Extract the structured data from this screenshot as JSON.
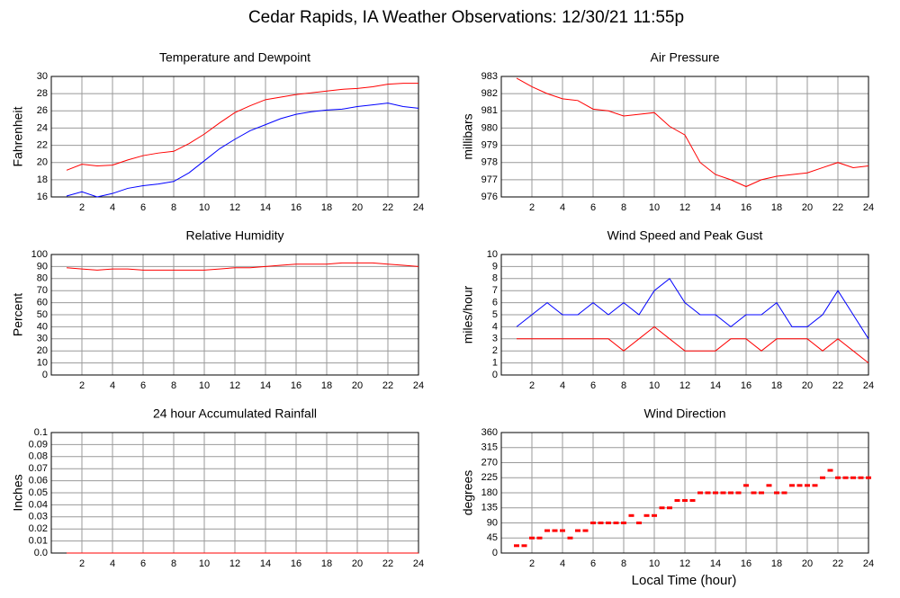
{
  "title": "Cedar Rapids, IA Weather Observations: 12/30/21 11:55p",
  "x_label": "Local Time (hour)",
  "chart_data": [
    {
      "type": "line",
      "title": "Temperature and Dewpoint",
      "y_label": "Fahrenheit",
      "x": [
        1,
        2,
        3,
        4,
        5,
        6,
        7,
        8,
        9,
        10,
        11,
        12,
        13,
        14,
        15,
        16,
        17,
        18,
        19,
        20,
        21,
        22,
        23,
        24
      ],
      "series": [
        {
          "color": "#ff0000",
          "values": [
            19.1,
            19.8,
            19.6,
            19.7,
            20.3,
            20.8,
            21.1,
            21.3,
            22.2,
            23.3,
            24.6,
            25.8,
            26.6,
            27.3,
            27.6,
            27.9,
            28.1,
            28.3,
            28.5,
            28.6,
            28.8,
            29.1,
            29.2,
            29.2
          ]
        },
        {
          "color": "#0000ff",
          "values": [
            16.1,
            16.6,
            16.0,
            16.4,
            17.0,
            17.3,
            17.5,
            17.8,
            18.8,
            20.2,
            21.6,
            22.7,
            23.7,
            24.4,
            25.1,
            25.6,
            25.9,
            26.1,
            26.2,
            26.5,
            26.7,
            26.9,
            26.5,
            26.3
          ]
        }
      ],
      "xlim": [
        0,
        24
      ],
      "xticks": [
        2,
        4,
        6,
        8,
        10,
        12,
        14,
        16,
        18,
        20,
        22,
        24
      ],
      "ylim": [
        16,
        30
      ],
      "yticks": [
        16,
        18,
        20,
        22,
        24,
        26,
        28,
        30
      ],
      "grid": true
    },
    {
      "type": "line",
      "title": "Air Pressure",
      "y_label": "millibars",
      "x": [
        1,
        2,
        3,
        4,
        5,
        6,
        7,
        8,
        9,
        10,
        11,
        12,
        13,
        14,
        15,
        16,
        17,
        18,
        19,
        20,
        21,
        22,
        23,
        24
      ],
      "series": [
        {
          "color": "#ff0000",
          "values": [
            982.9,
            982.4,
            982.0,
            981.7,
            981.6,
            981.1,
            981.0,
            980.7,
            980.8,
            980.9,
            980.1,
            979.6,
            978.0,
            977.3,
            977.0,
            976.6,
            977.0,
            977.2,
            977.3,
            977.4,
            977.7,
            978.0,
            977.7,
            977.8
          ]
        }
      ],
      "xlim": [
        0,
        24
      ],
      "xticks": [
        2,
        4,
        6,
        8,
        10,
        12,
        14,
        16,
        18,
        20,
        22,
        24
      ],
      "ylim": [
        976,
        983
      ],
      "yticks": [
        976,
        977,
        978,
        979,
        980,
        981,
        982,
        983
      ],
      "grid": true
    },
    {
      "type": "line",
      "title": "Relative Humidity",
      "y_label": "Percent",
      "x": [
        1,
        2,
        3,
        4,
        5,
        6,
        7,
        8,
        9,
        10,
        11,
        12,
        13,
        14,
        15,
        16,
        17,
        18,
        19,
        20,
        21,
        22,
        23,
        24
      ],
      "series": [
        {
          "color": "#ff0000",
          "values": [
            89,
            88,
            87,
            88,
            88,
            87,
            87,
            87,
            87,
            87,
            88,
            89,
            89,
            90,
            91,
            92,
            92,
            92,
            93,
            93,
            93,
            92,
            91,
            90
          ]
        }
      ],
      "xlim": [
        0,
        24
      ],
      "xticks": [
        2,
        4,
        6,
        8,
        10,
        12,
        14,
        16,
        18,
        20,
        22,
        24
      ],
      "ylim": [
        0,
        100
      ],
      "yticks": [
        0,
        10,
        20,
        30,
        40,
        50,
        60,
        70,
        80,
        90,
        100
      ],
      "grid": true
    },
    {
      "type": "line",
      "title": "Wind Speed and Peak Gust",
      "y_label": "miles/hour",
      "x": [
        1,
        2,
        3,
        4,
        5,
        6,
        7,
        8,
        9,
        10,
        11,
        12,
        13,
        14,
        15,
        16,
        17,
        18,
        19,
        20,
        21,
        22,
        23,
        24
      ],
      "series": [
        {
          "color": "#0000ff",
          "values": [
            4,
            5,
            6,
            5,
            5,
            6,
            5,
            6,
            5,
            7,
            8,
            6,
            5,
            5,
            4,
            5,
            5,
            6,
            4,
            4,
            5,
            7,
            5,
            3
          ]
        },
        {
          "color": "#ff0000",
          "values": [
            3,
            3,
            3,
            3,
            3,
            3,
            3,
            2,
            3,
            4,
            3,
            2,
            2,
            2,
            3,
            3,
            2,
            3,
            3,
            3,
            2,
            3,
            2,
            1
          ]
        }
      ],
      "xlim": [
        0,
        24
      ],
      "xticks": [
        2,
        4,
        6,
        8,
        10,
        12,
        14,
        16,
        18,
        20,
        22,
        24
      ],
      "ylim": [
        0,
        10
      ],
      "yticks": [
        0,
        1,
        2,
        3,
        4,
        5,
        6,
        7,
        8,
        9,
        10
      ],
      "grid": true
    },
    {
      "type": "line",
      "title": "24 hour Accumulated Rainfall",
      "y_label": "Inches",
      "x": [
        1,
        24
      ],
      "series": [
        {
          "color": "#ff0000",
          "values": [
            0,
            0
          ]
        }
      ],
      "xlim": [
        0,
        24
      ],
      "xticks": [
        2,
        4,
        6,
        8,
        10,
        12,
        14,
        16,
        18,
        20,
        22,
        24
      ],
      "ylim": [
        0,
        0.1
      ],
      "yticks": [
        {
          "value": 0,
          "label": "0.0"
        },
        0.01,
        0.02,
        0.03,
        0.04,
        0.05,
        0.06,
        0.07,
        0.08,
        0.09,
        0.1
      ],
      "grid": true
    },
    {
      "type": "scatter",
      "title": "Wind Direction",
      "y_label": "degrees",
      "x": [
        1,
        1.5,
        2,
        2.5,
        3,
        3.5,
        4,
        4.5,
        5,
        5.5,
        6,
        6.5,
        7,
        7.5,
        8,
        8.5,
        9,
        9.5,
        10,
        10.5,
        11,
        11.5,
        12,
        12.5,
        13,
        13.5,
        14,
        14.5,
        15,
        15.5,
        16,
        16.5,
        17,
        17.5,
        18,
        18.5,
        19,
        19.5,
        20,
        20.5,
        21,
        21.5,
        22,
        22.5,
        23,
        23.5,
        24
      ],
      "series": [
        {
          "color": "#ff0000",
          "values": [
            22,
            22,
            45,
            45,
            67,
            67,
            67,
            45,
            67,
            67,
            90,
            90,
            90,
            90,
            90,
            112,
            90,
            112,
            112,
            135,
            135,
            157,
            157,
            157,
            180,
            180,
            180,
            180,
            180,
            180,
            202,
            180,
            180,
            202,
            180,
            180,
            202,
            202,
            202,
            202,
            225,
            247,
            225,
            225,
            225,
            225,
            225
          ]
        }
      ],
      "xlim": [
        0,
        24
      ],
      "xticks": [
        2,
        4,
        6,
        8,
        10,
        12,
        14,
        16,
        18,
        20,
        22,
        24
      ],
      "ylim": [
        0,
        360
      ],
      "yticks": [
        0,
        45,
        90,
        135,
        180,
        225,
        270,
        315,
        360
      ],
      "grid": true
    }
  ]
}
